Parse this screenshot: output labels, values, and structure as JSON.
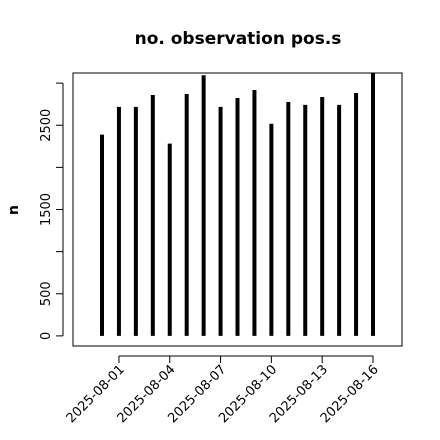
{
  "chart_data": {
    "type": "bar_h",
    "title": "no. observation pos.s",
    "y_label": "n",
    "x": [
      "2025-07-31",
      "2025-08-01",
      "2025-08-02",
      "2025-08-03",
      "2025-08-04",
      "2025-08-05",
      "2025-08-06",
      "2025-08-07",
      "2025-08-08",
      "2025-08-09",
      "2025-08-10",
      "2025-08-11",
      "2025-08-12",
      "2025-08-13",
      "2025-08-14",
      "2025-08-15",
      "2025-08-16"
    ],
    "values": [
      2388,
      2718,
      2718,
      2859,
      2282,
      2871,
      3094,
      2718,
      2824,
      2918,
      2518,
      2776,
      2741,
      2835,
      2741,
      2882,
      3118
    ],
    "color": "#000000",
    "ylim": [
      -120,
      3120
    ],
    "yticks": [
      0,
      500,
      1500,
      2500
    ],
    "yminor_ticks": [
      1000,
      2000,
      3000
    ],
    "xticks": [
      "2025-08-01",
      "2025-08-04",
      "2025-08-07",
      "2025-08-10",
      "2025-08-13",
      "2025-08-16"
    ],
    "xtick_color": "#000000",
    "highlight_tick": "2025-08-07",
    "highlight_color": "#228b22"
  }
}
